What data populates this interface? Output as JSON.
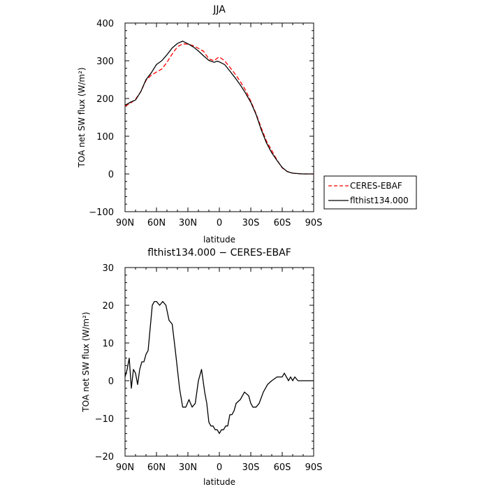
{
  "chart_data": [
    {
      "type": "line",
      "title": "JJA",
      "xlabel": "latitude",
      "ylabel": "TOA net SW flux (W/m²)",
      "xlim": [
        90,
        -90
      ],
      "ylim": [
        -100,
        400
      ],
      "xticks": [
        90,
        60,
        30,
        0,
        -30,
        -60,
        -90
      ],
      "xtick_labels": [
        "90N",
        "60N",
        "30N",
        "0",
        "30S",
        "60S",
        "90S"
      ],
      "yticks": [
        -100,
        0,
        100,
        200,
        300,
        400
      ],
      "ytick_labels": [
        "−100",
        "0",
        "100",
        "200",
        "300",
        "400"
      ],
      "grid": false,
      "legend": "right",
      "series": [
        {
          "name": "CERES-EBAF",
          "color": "#ff0000",
          "style": "dashed",
          "x": [
            90,
            85,
            80,
            75,
            70,
            65,
            60,
            55,
            50,
            45,
            40,
            35,
            30,
            25,
            20,
            15,
            10,
            5,
            2,
            0,
            -5,
            -10,
            -15,
            -20,
            -25,
            -30,
            -35,
            -40,
            -45,
            -50,
            -55,
            -60,
            -65,
            -70,
            -75,
            -80,
            -85,
            -90
          ],
          "values": [
            180,
            187,
            198,
            218,
            248,
            262,
            270,
            278,
            296,
            318,
            337,
            345,
            344,
            340,
            333,
            325,
            305,
            300,
            307,
            310,
            300,
            283,
            265,
            245,
            222,
            193,
            160,
            122,
            87,
            62,
            37,
            16,
            6,
            2,
            1,
            0,
            0,
            0
          ]
        },
        {
          "name": "flthist134.000",
          "color": "#000000",
          "style": "solid",
          "x": [
            90,
            85,
            80,
            75,
            70,
            65,
            60,
            55,
            50,
            45,
            40,
            35,
            30,
            25,
            20,
            15,
            10,
            5,
            2,
            0,
            -5,
            -10,
            -15,
            -20,
            -25,
            -30,
            -35,
            -40,
            -45,
            -50,
            -55,
            -60,
            -65,
            -70,
            -75,
            -80,
            -85,
            -90
          ],
          "values": [
            182,
            190,
            196,
            218,
            250,
            268,
            290,
            300,
            316,
            334,
            346,
            352,
            345,
            337,
            326,
            313,
            301,
            296,
            299,
            297,
            290,
            273,
            255,
            236,
            214,
            190,
            158,
            117,
            82,
            56,
            36,
            17,
            6,
            2,
            1,
            0,
            0,
            0
          ]
        }
      ]
    },
    {
      "type": "line",
      "title": "flthist134.000 − CERES-EBAF",
      "xlabel": "latitude",
      "ylabel": "TOA net SW flux (W/m²)",
      "xlim": [
        90,
        -90
      ],
      "ylim": [
        -20,
        30
      ],
      "xticks": [
        90,
        60,
        30,
        0,
        -30,
        -60,
        -90
      ],
      "xtick_labels": [
        "90N",
        "60N",
        "30N",
        "0",
        "30S",
        "60S",
        "90S"
      ],
      "yticks": [
        -20,
        -10,
        0,
        10,
        20,
        30
      ],
      "ytick_labels": [
        "−20",
        "−10",
        "0",
        "10",
        "20",
        "30"
      ],
      "grid": false,
      "series": [
        {
          "color": "#000000",
          "style": "solid",
          "x": [
            90,
            88,
            86,
            84,
            82,
            80,
            78,
            76,
            74,
            72,
            70,
            68,
            66,
            64,
            62,
            60,
            57,
            54,
            51,
            48,
            45,
            42,
            40,
            38,
            35,
            32,
            29,
            26,
            23,
            20,
            17,
            14,
            12,
            10,
            8,
            6,
            4,
            2,
            0,
            -2,
            -4,
            -6,
            -8,
            -10,
            -12,
            -14,
            -16,
            -20,
            -24,
            -28,
            -30,
            -32,
            -35,
            -38,
            -42,
            -46,
            -50,
            -55,
            -60,
            -62,
            -64,
            -66,
            -68,
            -70,
            -72,
            -75,
            -80,
            -85,
            -90
          ],
          "values": [
            1,
            3,
            6,
            -2,
            3,
            2,
            -1,
            3,
            5,
            5,
            7,
            8,
            14,
            20,
            21,
            21,
            20,
            21,
            20,
            16,
            15,
            8,
            3,
            -2,
            -7,
            -7,
            -5,
            -7,
            -6,
            0,
            3,
            -3,
            -6,
            -11,
            -12,
            -12,
            -13,
            -13,
            -14,
            -13,
            -13,
            -12,
            -12,
            -9,
            -9,
            -8,
            -6,
            -5,
            -3,
            -4,
            -6,
            -7,
            -7,
            -6,
            -3,
            -1,
            0,
            1,
            1,
            2,
            1,
            0,
            1,
            0,
            1,
            0,
            0,
            0,
            0
          ]
        }
      ]
    }
  ]
}
